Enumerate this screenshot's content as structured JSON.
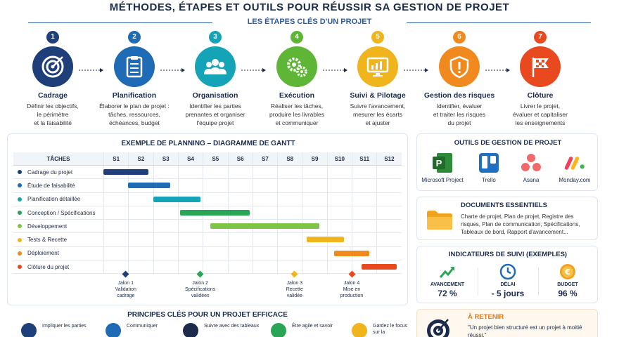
{
  "title": "MÉTHODES, ÉTAPES ET OUTILS POUR RÉUSSIR SA GESTION DE PROJET",
  "steps_header": "LES ÉTAPES CLÉS D'UN PROJET",
  "steps": [
    {
      "num": "1",
      "name": "Cadrage",
      "desc": [
        "Définir les objectifs,",
        "le périmètre",
        "et la faisabilité"
      ],
      "color": "#1f3f7a",
      "icon": "target-icon"
    },
    {
      "num": "2",
      "name": "Planification",
      "desc": [
        "Élaborer le plan de projet :",
        "tâches, ressources,",
        "échéances, budget"
      ],
      "color": "#1f6bb5",
      "icon": "checklist-icon"
    },
    {
      "num": "3",
      "name": "Organisation",
      "desc": [
        "Identifier les parties",
        "prenantes et organiser",
        "l'équipe projet"
      ],
      "color": "#15a3b8",
      "icon": "team-icon"
    },
    {
      "num": "4",
      "name": "Exécution",
      "desc": [
        "Réaliser les tâches,",
        "produire les livrables",
        "et communiquer"
      ],
      "color": "#5fb535",
      "icon": "gears-icon"
    },
    {
      "num": "5",
      "name": "Suivi & Pilotage",
      "desc": [
        "Suivre l'avancement,",
        "mesurer les écarts",
        "et ajuster"
      ],
      "color": "#f0b51d",
      "icon": "monitor-chart-icon"
    },
    {
      "num": "6",
      "name": "Gestion des risques",
      "desc": [
        "Identifier, évaluer",
        "et traiter les risques",
        "du projet"
      ],
      "color": "#f08a1e",
      "icon": "shield-icon"
    },
    {
      "num": "7",
      "name": "Clôture",
      "desc": [
        "Livrer le projet,",
        "évaluer et capitaliser",
        "les enseignements"
      ],
      "color": "#e8491f",
      "icon": "flag-icon"
    }
  ],
  "gantt": {
    "title": "EXEMPLE DE PLANNING – DIAGRAMME DE GANTT",
    "task_header": "TÂCHES",
    "periods": [
      "S1",
      "S2",
      "S3",
      "S4",
      "S5",
      "S6",
      "S7",
      "S8",
      "S9",
      "S10",
      "S11",
      "S12"
    ],
    "tasks": [
      {
        "name": "Cadrage du projet",
        "color": "#1f3f7a",
        "start": 1,
        "end": 2.8
      },
      {
        "name": "Étude de faisabilité",
        "color": "#1f6bb5",
        "start": 2,
        "end": 3.7
      },
      {
        "name": "Planification détaillée",
        "color": "#15a3b8",
        "start": 3,
        "end": 4.9
      },
      {
        "name": "Conception / Spécifications",
        "color": "#2aa556",
        "start": 4.1,
        "end": 6.9
      },
      {
        "name": "Développement",
        "color": "#7ec447",
        "start": 5.3,
        "end": 9.7
      },
      {
        "name": "Tests & Recette",
        "color": "#f0b51d",
        "start": 9.2,
        "end": 10.7
      },
      {
        "name": "Déploiement",
        "color": "#f08a1e",
        "start": 10.3,
        "end": 11.7
      },
      {
        "name": "Clôture du projet",
        "color": "#e8491f",
        "start": 11.4,
        "end": 12.8
      }
    ],
    "milestones": [
      {
        "label": [
          "Jalon 1",
          "Validation",
          "cadrage"
        ],
        "color": "#1f3f7a",
        "at": 1.9
      },
      {
        "label": [
          "Jalon 2",
          "Spécifications",
          "validées"
        ],
        "color": "#2aa556",
        "at": 4.9
      },
      {
        "label": [
          "Jalon 3",
          "Recette",
          "validée"
        ],
        "color": "#f0b51d",
        "at": 8.7
      },
      {
        "label": [
          "Jalon 4",
          "Mise en",
          "production"
        ],
        "color": "#e8491f",
        "at": 11.0
      }
    ]
  },
  "principes": {
    "title": "PRINCIPES CLÉS POUR UN PROJET EFFICACE",
    "items": [
      {
        "text": "Impliquer les parties",
        "icon": "people-icon",
        "color": "#1f3f7a"
      },
      {
        "text": "Communiquer",
        "icon": "chat-icon",
        "color": "#1f6bb5"
      },
      {
        "text": "Suivre avec des tableaux",
        "icon": "gauge-icon",
        "color": "#1b2b4b"
      },
      {
        "text": "Être agile et savoir",
        "icon": "cycle-icon",
        "color": "#2aa556"
      },
      {
        "text": "Gardez le focus sur la",
        "icon": "star-icon",
        "color": "#f0b51d"
      }
    ]
  },
  "tools": {
    "title": "OUTILS DE GESTION DE PROJET",
    "items": [
      {
        "name": "Microsoft Project",
        "icon": "ms-project-logo"
      },
      {
        "name": "Trello",
        "icon": "trello-logo"
      },
      {
        "name": "Asana",
        "icon": "asana-logo"
      },
      {
        "name": "Monday.com",
        "icon": "monday-logo"
      }
    ]
  },
  "docs": {
    "title": "DOCUMENTS ESSENTIELS",
    "text": "Charte de projet, Plan de projet, Registre des risques, Plan de communication, Spécifications, Tableaux de bord, Rapport d'avancement..."
  },
  "kpis": {
    "title": "INDICATEURS DE SUIVI (EXEMPLES)",
    "items": [
      {
        "label": "AVANCEMENT",
        "value": "72 %",
        "icon": "trend-up-icon",
        "color": "#2aa556"
      },
      {
        "label": "DÉLAI",
        "value": "- 5 jours",
        "icon": "clock-icon",
        "color": "#1f6bb5"
      },
      {
        "label": "BUDGET",
        "value": "96 %",
        "icon": "euro-coin-icon",
        "color": "#f0a41d"
      }
    ]
  },
  "retenir": {
    "title": "À RETENIR",
    "text": "\"Un projet bien structuré est un projet à moitié réussi.\""
  }
}
